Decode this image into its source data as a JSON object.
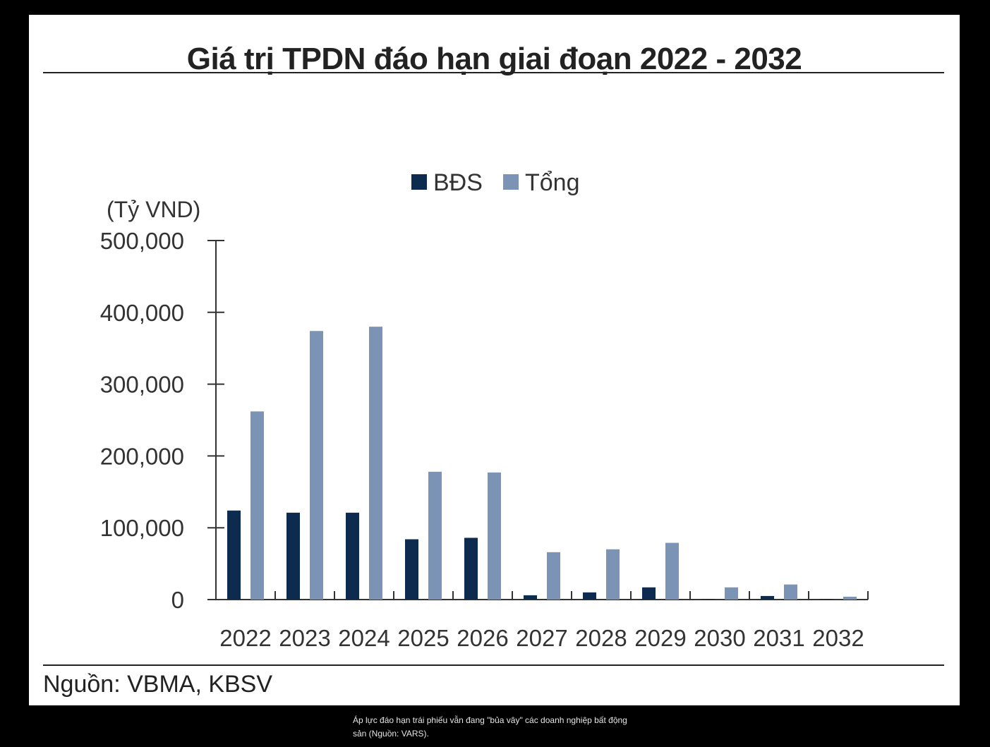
{
  "caption": "Áp lực đáo hạn trái phiếu vẫn đang \"bủa vây\" các doanh nghiệp bất động sản (Nguồn: VARS).",
  "colors": {
    "background": "#000000",
    "panel": "#ffffff",
    "bds": "#0d2b4e",
    "tong": "#7b93b5",
    "text": "#222222"
  },
  "chart_data": {
    "type": "bar",
    "title": "Giá trị TPDN đáo hạn giai đoạn 2022 - 2032",
    "unit_label": "(Tỷ VND)",
    "source": "Nguồn: VBMA, KBSV",
    "categories": [
      "2022",
      "2023",
      "2024",
      "2025",
      "2026",
      "2027",
      "2028",
      "2029",
      "2030",
      "2031",
      "2032"
    ],
    "series": [
      {
        "name": "BĐS",
        "color": "#0d2b4e",
        "values": [
          124000,
          121000,
          121000,
          84000,
          86000,
          6000,
          10000,
          17000,
          1000,
          5000,
          1000
        ]
      },
      {
        "name": "Tổng",
        "color": "#7b93b5",
        "values": [
          262000,
          374000,
          380000,
          178000,
          177000,
          66000,
          70000,
          79000,
          17000,
          21000,
          4000
        ]
      }
    ],
    "ylim": [
      0,
      500000
    ],
    "yticks": [
      0,
      100000,
      200000,
      300000,
      400000,
      500000
    ],
    "ytick_labels": [
      "0",
      "100,000",
      "200,000",
      "300,000",
      "400,000",
      "500,000"
    ],
    "legend_position": "top-center",
    "grid": false
  }
}
